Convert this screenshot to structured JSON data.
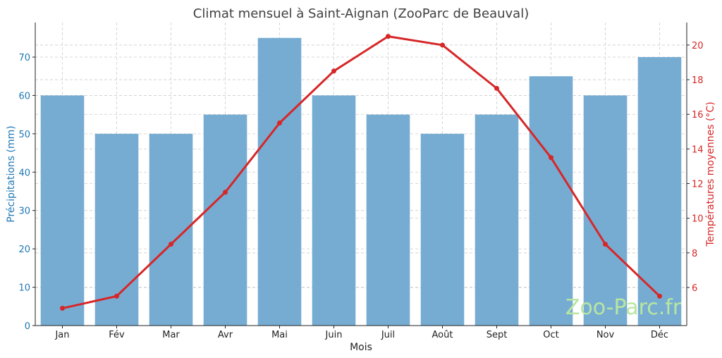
{
  "chart_data": {
    "type": "bar",
    "title": "Climat mensuel à Saint-Aignan (ZooParc de Beauval)",
    "xlabel": "Mois",
    "ylabel_left": "Précipitations (mm)",
    "ylabel_right": "Températures moyennes (°C)",
    "categories": [
      "Jan",
      "Fév",
      "Mar",
      "Avr",
      "Mai",
      "Juin",
      "Juil",
      "Août",
      "Sept",
      "Oct",
      "Nov",
      "Déc"
    ],
    "ylim_left": [
      0,
      79
    ],
    "yticks_left": [
      0,
      10,
      20,
      30,
      40,
      50,
      60,
      70
    ],
    "ylim_right": [
      3.8,
      21.3
    ],
    "yticks_right": [
      6,
      8,
      10,
      12,
      14,
      16,
      18,
      20
    ],
    "grid": true,
    "series": [
      {
        "name": "Précipitations (mm)",
        "kind": "bar",
        "axis": "left",
        "color": "#76acd2",
        "values": [
          60,
          50,
          50,
          55,
          75,
          60,
          55,
          50,
          55,
          65,
          60,
          70
        ]
      },
      {
        "name": "Températures moyennes (°C)",
        "kind": "line",
        "axis": "right",
        "color": "#d62728",
        "values": [
          4.8,
          5.5,
          8.5,
          11.5,
          15.5,
          18.5,
          20.5,
          20.0,
          17.5,
          13.5,
          8.5,
          5.5
        ]
      }
    ],
    "left_axis_color": "#1f77b4",
    "right_axis_color": "#d62728",
    "watermark": "Zoo-Parc.fr",
    "watermark_color": "#b8e6a0"
  }
}
